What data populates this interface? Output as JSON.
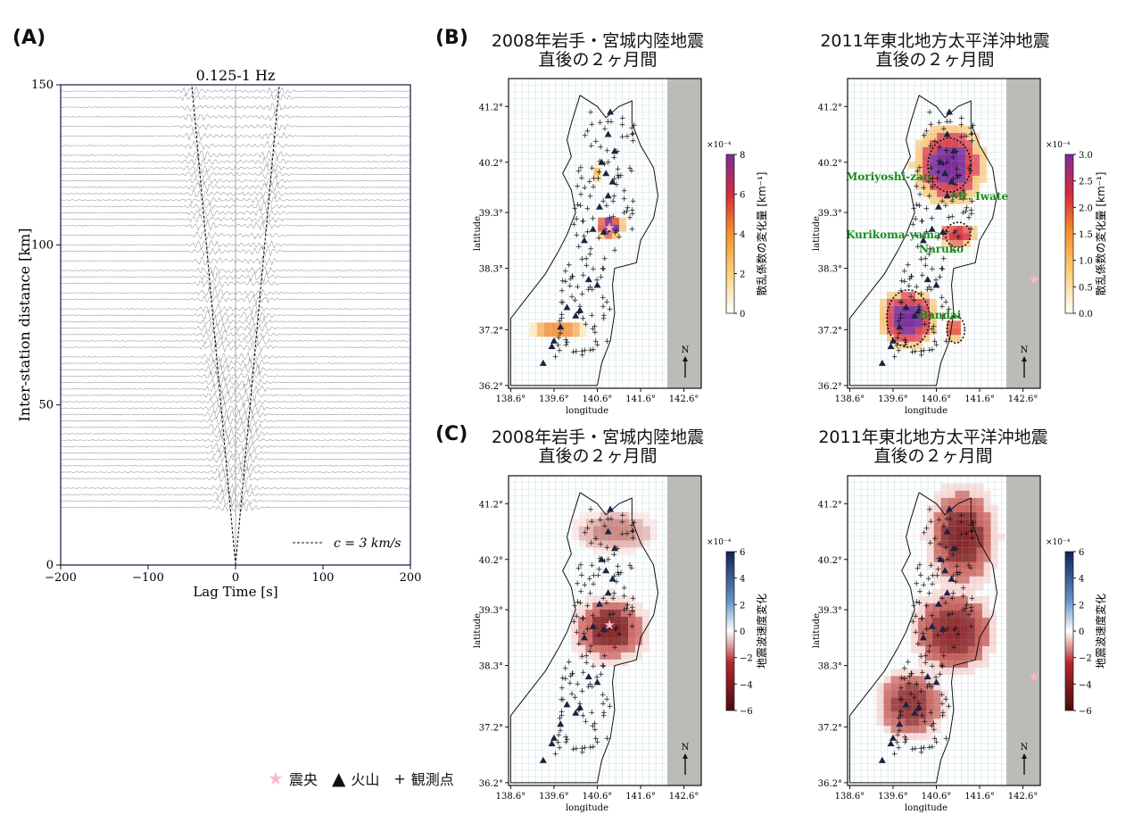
{
  "panel_labels": {
    "a": "(A)",
    "b": "(B)",
    "c": "(C)"
  },
  "map_titles": {
    "b_left_line1": "2008年岩手・宮城内陸地震",
    "b_left_line2": "直後の２ヶ月間",
    "b_right_line1": "2011年東北地方太平洋沖地震",
    "b_right_line2": "直後の２ヶ月間",
    "c_left_line1": "2008年岩手・宮城内陸地震",
    "c_left_line2": "直後の２ヶ月間",
    "c_right_line1": "2011年東北地方太平洋沖地震",
    "c_right_line2": "直後の２ヶ月間"
  },
  "legend": {
    "epicenter": "震央",
    "volcano": "火山",
    "station": "観測点"
  },
  "map_labels": {
    "xlabel": "longitude",
    "ylabel": "latitude",
    "north": "N",
    "volcano_names": [
      "Moriyoshi-zan",
      "Mt. Iwate",
      "Kurikoma-yama",
      "Naruko",
      "Bandai"
    ]
  },
  "colorbars": {
    "scatter_label": "散乱係数の変化量 [km⁻¹]",
    "velocity_label": "地震波速度変化",
    "exponent": "×10⁻⁴"
  },
  "colors": {
    "trace": "#8c8c8c",
    "star": "#ffb6c8",
    "volcano": "#1b2340",
    "sea": "#bbbcb8",
    "grid": "#cfe1e1",
    "label_green": "#1a8a1a"
  },
  "chart_data": [
    {
      "type": "line",
      "subtype": "waveform-gather",
      "title": "0.125-1 Hz",
      "xlabel": "Lag Time [s]",
      "ylabel": "Inter-station distance [km]",
      "xlim": [
        -200,
        200
      ],
      "ylim": [
        0,
        150
      ],
      "xticks": [
        -200,
        -100,
        0,
        100,
        200
      ],
      "xtick_labels": [
        "−200",
        "−100",
        "0",
        "100",
        "200"
      ],
      "yticks": [
        0,
        50,
        100,
        150
      ],
      "reference_line": {
        "label": "c = 3 km/s",
        "velocity_km_s": 3,
        "style": "dashed"
      },
      "trace_distances": [
        18,
        20,
        22,
        24,
        27,
        29,
        31,
        33,
        35,
        37,
        39,
        41,
        43,
        45,
        47,
        49,
        51,
        53,
        55,
        57,
        59,
        61,
        63,
        65,
        68,
        70,
        72,
        74,
        76,
        78,
        80,
        83,
        85,
        88,
        90,
        92,
        95,
        98,
        100,
        103,
        106,
        108,
        110,
        112,
        114,
        116,
        118,
        120,
        122,
        124,
        126,
        128,
        131,
        134,
        137,
        140,
        143,
        146,
        148
      ]
    },
    {
      "type": "heatmap",
      "panel": "B-left",
      "xlabel": "longitude",
      "ylabel": "latitude",
      "xticks": [
        "138.6°",
        "139.6°",
        "140.6°",
        "141.6°",
        "142.6°"
      ],
      "yticks": [
        "41.2°",
        "40.2°",
        "39.3°",
        "38.3°",
        "37.2°",
        "36.2°"
      ],
      "colorbar": {
        "label": "散乱係数の変化量 [km⁻¹]",
        "range": [
          0,
          8
        ],
        "ticks": [
          0,
          2,
          4,
          6,
          8
        ],
        "exponent": "×10⁻⁴",
        "colormap": "white-orange-red-purple"
      }
    },
    {
      "type": "heatmap",
      "panel": "B-right",
      "xlabel": "longitude",
      "ylabel": "latitude",
      "xticks": [
        "138.6°",
        "139.6°",
        "140.6°",
        "141.6°",
        "142.6°"
      ],
      "yticks": [
        "41.2°",
        "40.2°",
        "39.3°",
        "38.3°",
        "37.2°",
        "36.2°"
      ],
      "colorbar": {
        "label": "散乱係数の変化量 [km⁻¹]",
        "range": [
          0,
          3
        ],
        "ticks": [
          "0.0",
          "0.5",
          "1.0",
          "1.5",
          "2.0",
          "2.5",
          "3.0"
        ],
        "exponent": "×10⁻⁴",
        "colormap": "white-orange-red-purple"
      }
    },
    {
      "type": "heatmap",
      "panel": "C-left",
      "xlabel": "longitude",
      "ylabel": "latitude",
      "xticks": [
        "138.6°",
        "139.6°",
        "140.6°",
        "141.6°",
        "142.6°"
      ],
      "yticks": [
        "41.2°",
        "40.2°",
        "39.3°",
        "38.3°",
        "37.2°",
        "36.2°"
      ],
      "colorbar": {
        "label": "地震波速度変化",
        "range": [
          -6,
          6
        ],
        "ticks": [
          "6",
          "4",
          "2",
          "0",
          "−2",
          "−4",
          "−6"
        ],
        "exponent": "×10⁻⁴",
        "colormap": "blue-white-red"
      }
    },
    {
      "type": "heatmap",
      "panel": "C-right",
      "xlabel": "longitude",
      "ylabel": "latitude",
      "xticks": [
        "138.6°",
        "139.6°",
        "140.6°",
        "141.6°",
        "142.6°"
      ],
      "yticks": [
        "41.2°",
        "40.2°",
        "39.3°",
        "38.3°",
        "37.2°",
        "36.2°"
      ],
      "colorbar": {
        "label": "地震波速度変化",
        "range": [
          -6,
          6
        ],
        "ticks": [
          "6",
          "4",
          "2",
          "0",
          "−2",
          "−4",
          "−6"
        ],
        "exponent": "×10⁻⁴",
        "colormap": "blue-white-red"
      }
    }
  ]
}
